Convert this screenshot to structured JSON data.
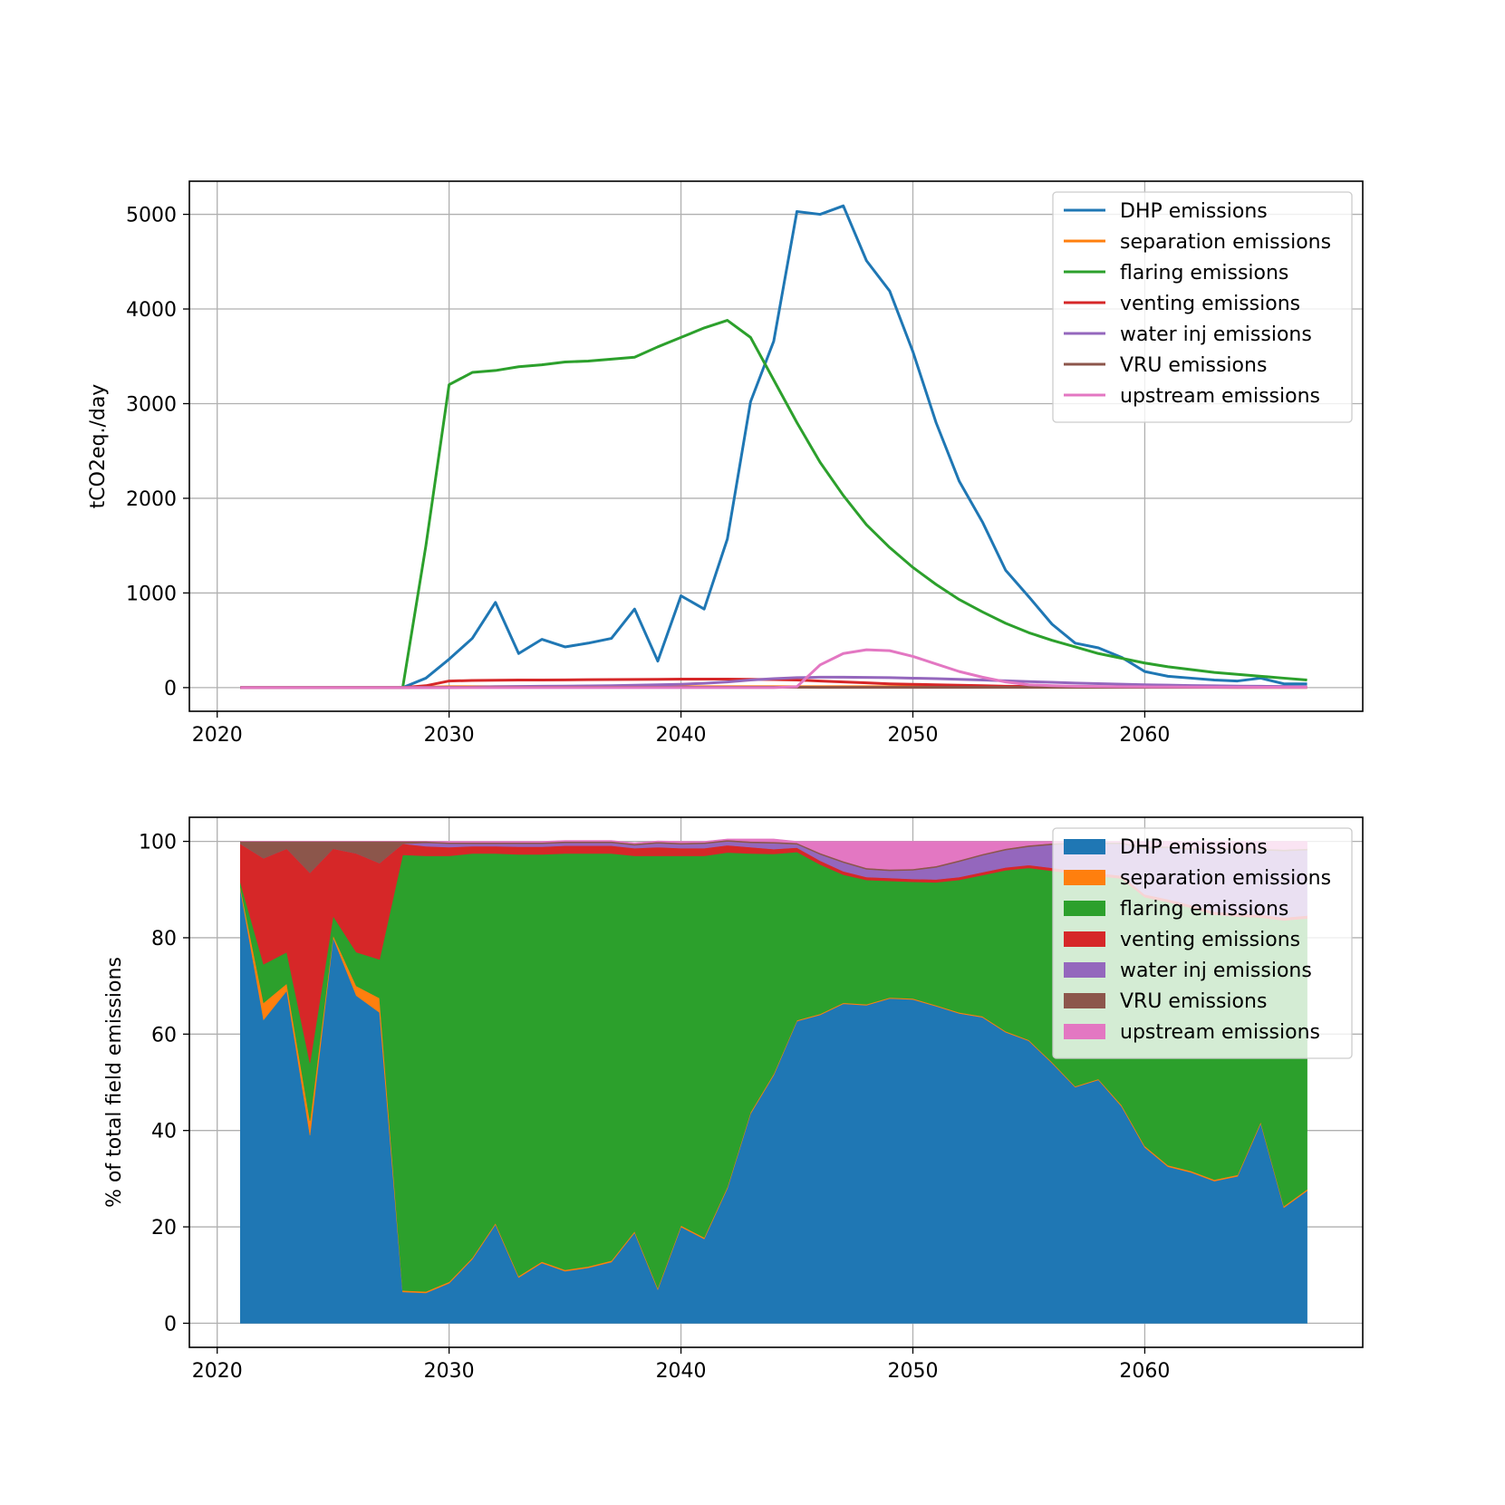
{
  "colors": {
    "DHP emissions": "#1f77b4",
    "separation emissions": "#ff7f0e",
    "flaring emissions": "#2ca02c",
    "venting emissions": "#d62728",
    "water inj emissions": "#9467bd",
    "VRU emissions": "#8c564b",
    "upstream emissions": "#e377c2"
  },
  "chart_data": [
    {
      "type": "line",
      "title": "",
      "xlabel": "",
      "ylabel": "tCO2eq./day",
      "xlim": [
        2018.8,
        2069.4
      ],
      "ylim": [
        -250,
        5350
      ],
      "xticks": [
        2020,
        2030,
        2040,
        2050,
        2060
      ],
      "xtick_labels": [
        "2020",
        "2030",
        "2040",
        "2050",
        "2060"
      ],
      "yticks": [
        0,
        1000,
        2000,
        3000,
        4000,
        5000
      ],
      "ytick_labels": [
        "0",
        "1000",
        "2000",
        "3000",
        "4000",
        "5000"
      ],
      "grid": true,
      "legend": "top-right",
      "x": [
        2021,
        2022,
        2023,
        2024,
        2025,
        2026,
        2027,
        2028,
        2029,
        2030,
        2031,
        2032,
        2033,
        2034,
        2035,
        2036,
        2037,
        2038,
        2039,
        2040,
        2041,
        2042,
        2043,
        2044,
        2045,
        2046,
        2047,
        2048,
        2049,
        2050,
        2051,
        2052,
        2053,
        2054,
        2055,
        2056,
        2057,
        2058,
        2059,
        2060,
        2061,
        2062,
        2063,
        2064,
        2065,
        2066,
        2067
      ],
      "series": [
        {
          "name": "DHP emissions",
          "values": [
            0,
            0,
            0,
            0,
            0,
            0,
            0,
            0,
            100,
            300,
            520,
            900,
            360,
            510,
            430,
            470,
            520,
            830,
            280,
            970,
            830,
            1570,
            3020,
            3660,
            5030,
            5000,
            5090,
            4510,
            4190,
            3550,
            2800,
            2180,
            1750,
            1240,
            960,
            670,
            470,
            420,
            320,
            170,
            120,
            100,
            80,
            70,
            100,
            40,
            40
          ]
        },
        {
          "name": "separation emissions",
          "values": [
            0,
            0,
            0,
            0,
            0,
            0,
            0,
            0,
            5,
            10,
            10,
            10,
            10,
            10,
            10,
            10,
            10,
            10,
            10,
            10,
            10,
            10,
            10,
            10,
            10,
            10,
            10,
            10,
            10,
            10,
            10,
            10,
            5,
            5,
            5,
            5,
            5,
            5,
            5,
            5,
            5,
            5,
            5,
            5,
            5,
            5,
            5
          ]
        },
        {
          "name": "flaring emissions",
          "values": [
            0,
            0,
            0,
            0,
            0,
            0,
            0,
            0,
            1500,
            3200,
            3330,
            3350,
            3390,
            3410,
            3440,
            3450,
            3470,
            3490,
            3600,
            3700,
            3800,
            3880,
            3700,
            3250,
            2800,
            2380,
            2030,
            1720,
            1480,
            1270,
            1090,
            930,
            800,
            680,
            580,
            500,
            430,
            360,
            310,
            260,
            220,
            190,
            160,
            140,
            120,
            100,
            80
          ]
        },
        {
          "name": "venting emissions",
          "values": [
            0,
            0,
            0,
            0,
            0,
            0,
            0,
            0,
            20,
            70,
            75,
            78,
            80,
            80,
            82,
            84,
            85,
            86,
            88,
            90,
            90,
            90,
            88,
            85,
            80,
            70,
            60,
            50,
            40,
            35,
            30,
            25,
            20,
            15,
            12,
            10,
            8,
            7,
            6,
            5,
            5,
            4,
            4,
            3,
            3,
            3,
            3
          ]
        },
        {
          "name": "water inj emissions",
          "values": [
            0,
            0,
            0,
            0,
            0,
            0,
            0,
            0,
            0,
            0,
            5,
            10,
            12,
            14,
            16,
            18,
            20,
            25,
            30,
            35,
            45,
            60,
            80,
            95,
            105,
            110,
            110,
            108,
            105,
            100,
            95,
            88,
            80,
            72,
            64,
            56,
            48,
            42,
            36,
            30,
            26,
            22,
            19,
            16,
            14,
            12,
            10
          ]
        },
        {
          "name": "VRU emissions",
          "values": [
            0,
            0,
            0,
            0,
            0,
            0,
            0,
            0,
            2,
            4,
            4,
            4,
            4,
            4,
            4,
            4,
            4,
            4,
            4,
            4,
            4,
            4,
            4,
            4,
            4,
            3,
            3,
            3,
            3,
            3,
            3,
            3,
            2,
            2,
            2,
            2,
            2,
            2,
            2,
            2,
            2,
            2,
            2,
            2,
            2,
            2,
            2
          ]
        },
        {
          "name": "upstream emissions",
          "values": [
            0,
            0,
            0,
            0,
            0,
            0,
            0,
            0,
            0,
            0,
            0,
            0,
            0,
            0,
            0,
            0,
            0,
            0,
            0,
            0,
            0,
            0,
            0,
            0,
            10,
            240,
            360,
            400,
            390,
            330,
            250,
            170,
            110,
            60,
            30,
            20,
            15,
            12,
            10,
            8,
            7,
            6,
            5,
            5,
            4,
            4,
            4
          ]
        }
      ]
    },
    {
      "type": "area",
      "stacked": true,
      "title": "",
      "xlabel": "",
      "ylabel": "% of total field emissions",
      "xlim": [
        2018.8,
        2069.4
      ],
      "ylim": [
        -5,
        105
      ],
      "xticks": [
        2020,
        2030,
        2040,
        2050,
        2060
      ],
      "xtick_labels": [
        "2020",
        "2030",
        "2040",
        "2050",
        "2060"
      ],
      "yticks": [
        0,
        20,
        40,
        60,
        80,
        100
      ],
      "ytick_labels": [
        "0",
        "20",
        "40",
        "60",
        "80",
        "100"
      ],
      "grid": true,
      "legend": "top-right",
      "x": [
        2021,
        2022,
        2023,
        2024,
        2025,
        2026,
        2027,
        2028,
        2029,
        2030,
        2031,
        2032,
        2033,
        2034,
        2035,
        2036,
        2037,
        2038,
        2039,
        2040,
        2041,
        2042,
        2043,
        2044,
        2045,
        2046,
        2047,
        2048,
        2049,
        2050,
        2051,
        2052,
        2053,
        2054,
        2055,
        2056,
        2057,
        2058,
        2059,
        2060,
        2061,
        2062,
        2063,
        2064,
        2065,
        2066,
        2067
      ],
      "series": [
        {
          "name": "DHP emissions",
          "values": [
            90,
            63,
            69,
            39,
            80,
            68,
            64.5,
            6.5,
            6.3,
            8.3,
            13.3,
            20.5,
            9.5,
            12.5,
            10.8,
            11.5,
            12.7,
            18.8,
            7,
            20,
            17.5,
            28,
            43.5,
            51.5,
            62.7,
            64,
            66.3,
            66,
            67.4,
            67.2,
            65.8,
            64.3,
            63.5,
            60.4,
            58.6,
            54,
            49,
            50.5,
            45,
            36.5,
            32.5,
            31.3,
            29.5,
            30.5,
            41.5,
            24,
            27.5
          ]
        },
        {
          "name": "separation emissions",
          "values": [
            0.5,
            3.5,
            1.5,
            3,
            0.5,
            2,
            3,
            0.3,
            0.3,
            0.3,
            0.3,
            0.3,
            0.3,
            0.3,
            0.3,
            0.3,
            0.3,
            0.3,
            0.3,
            0.3,
            0.3,
            0.3,
            0.3,
            0.3,
            0.2,
            0.2,
            0.2,
            0.2,
            0.2,
            0.2,
            0.2,
            0.2,
            0.2,
            0.2,
            0.2,
            0.2,
            0.2,
            0.2,
            0.3,
            0.3,
            0.3,
            0.3,
            0.3,
            0.3,
            0.3,
            0.3,
            0.3
          ]
        },
        {
          "name": "flaring emissions",
          "values": [
            1,
            8,
            6.5,
            12,
            4,
            7,
            8,
            90.4,
            90.4,
            88.4,
            83.9,
            76.7,
            87.5,
            84.5,
            86.4,
            85.7,
            84.5,
            77.9,
            89.7,
            76.7,
            79.2,
            69.4,
            53.7,
            45.6,
            34.9,
            31,
            26.6,
            25.8,
            24.2,
            24.2,
            25.5,
            27.5,
            29.3,
            33.4,
            35.7,
            39.7,
            44.1,
            42.1,
            47,
            51.6,
            54.6,
            54.6,
            55,
            53.6,
            42.4,
            59.3,
            56.2
          ]
        },
        {
          "name": "venting emissions",
          "values": [
            8,
            22,
            21.5,
            39.5,
            14,
            20.5,
            20,
            2.3,
            2,
            1.8,
            1.5,
            1.5,
            1.6,
            1.6,
            1.6,
            1.6,
            1.6,
            1.6,
            1.8,
            1.6,
            1.6,
            1.5,
            1.3,
            1,
            0.9,
            0.8,
            0.7,
            0.6,
            0.6,
            0.6,
            0.6,
            0.6,
            0.6,
            0.6,
            0.6,
            0.6,
            0.6,
            0.6,
            0.6,
            0.6,
            0.6,
            0.6,
            0.6,
            0.6,
            0.6,
            0.6,
            0.6
          ]
        },
        {
          "name": "water inj emissions",
          "values": [
            0,
            0,
            0,
            0,
            0,
            0,
            0,
            0,
            0.7,
            0.7,
            0.5,
            0.5,
            0.6,
            0.6,
            0.6,
            0.6,
            0.6,
            0.6,
            0.8,
            0.8,
            0.9,
            0.8,
            0.9,
            1.2,
            0.7,
            1.3,
            1.8,
            1.6,
            1.5,
            1.8,
            2.5,
            3.2,
            3.5,
            3.6,
            3.8,
            4.8,
            5.6,
            6.1,
            6.6,
            9.6,
            10.7,
            11.5,
            12.9,
            13.3,
            13.4,
            13.8,
            13.6
          ]
        },
        {
          "name": "VRU emissions",
          "values": [
            0.5,
            3.5,
            1.5,
            6.5,
            1.5,
            2.5,
            4.5,
            0.5,
            0.3,
            0.3,
            0.3,
            0.3,
            0.3,
            0.3,
            0.3,
            0.3,
            0.3,
            0.3,
            0.3,
            0.3,
            0.3,
            0.3,
            0.3,
            0.3,
            0.3,
            0.3,
            0.3,
            0.3,
            0.3,
            0.3,
            0.3,
            0.3,
            0.3,
            0.3,
            0.3,
            0.3,
            0.3,
            0.3,
            0.3,
            0.3,
            0.3,
            0.3,
            0.3,
            0.3,
            0.3,
            0.3,
            0.3
          ]
        },
        {
          "name": "upstream emissions",
          "values": [
            0,
            0,
            0,
            0,
            0,
            0,
            0,
            0,
            0,
            0.2,
            0.2,
            0.2,
            0.2,
            0.2,
            0.2,
            0.2,
            0.2,
            0.2,
            0.2,
            0.3,
            0.2,
            0.2,
            0.5,
            0.6,
            0.3,
            2.4,
            4.1,
            5.5,
            5.8,
            5.7,
            5.1,
            3.9,
            2.6,
            1.5,
            0.8,
            0.4,
            0.2,
            0.2,
            0.2,
            1.1,
            1,
            1.4,
            1.4,
            1.4,
            1.5,
            1.7,
            1.5
          ]
        }
      ]
    }
  ]
}
